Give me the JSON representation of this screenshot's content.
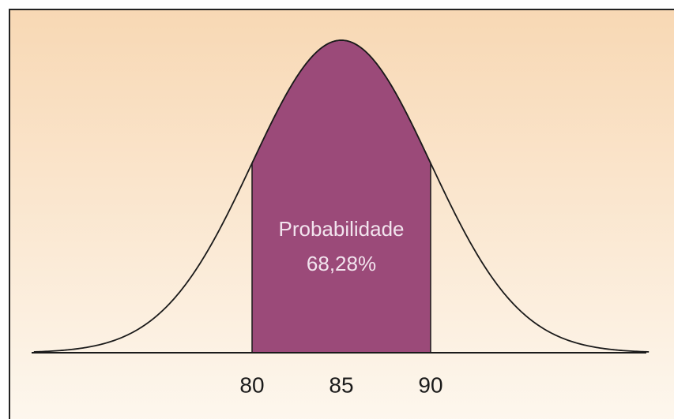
{
  "chart_data": {
    "type": "normal",
    "mean": 85,
    "sd": 5,
    "shade": [
      80,
      90
    ],
    "annotation": [
      "Probabilidade",
      "68,28%"
    ],
    "xlim": [
      67.5,
      102.5
    ],
    "xticks": [
      80,
      85,
      90
    ],
    "ylim": [
      0,
      0.082
    ],
    "color": "#9b4a79"
  }
}
